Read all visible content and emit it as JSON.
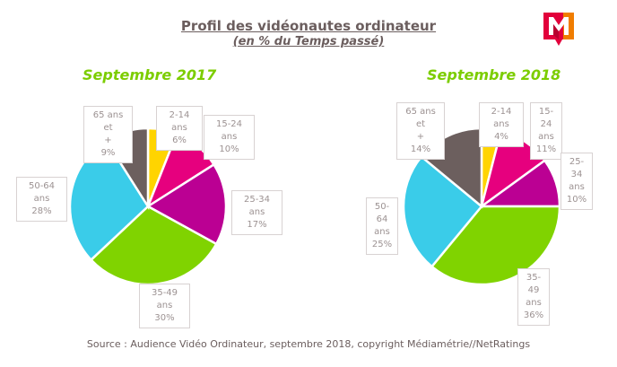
{
  "header": {
    "title": "Profil des vidéonautes ordinateur",
    "subtitle": "(en % du Temps passé)"
  },
  "logo": {
    "name": "mediametrie-logo",
    "colors": [
      "#e2003b",
      "#f07d00"
    ]
  },
  "footer": {
    "source": "Source : Audience Vidéo Ordinateur, septembre 2018, copyright Médiamétrie//NetRatings"
  },
  "colors": {
    "2-14 ans": "#ffd400",
    "15-24 ans": "#e6007e",
    "25-34 ans": "#bb0093",
    "35-49 ans": "#80d300",
    "50-64 ans": "#3acce9",
    "65 ans et +": "#6c5f5e"
  },
  "charts": [
    {
      "title": "Septembre 2017",
      "labels": [
        {
          "line1": "2-14 ans",
          "line2": "",
          "value": "6%"
        },
        {
          "line1": "15-24 ans",
          "line2": "",
          "value": "10%"
        },
        {
          "line1": "25-34 ans",
          "line2": "",
          "value": "17%"
        },
        {
          "line1": "35-49 ans",
          "line2": "",
          "value": "30%"
        },
        {
          "line1": "50-64 ans",
          "line2": "",
          "value": "28%"
        },
        {
          "line1": "65 ans et",
          "line2": "+",
          "value": "9%"
        }
      ]
    },
    {
      "title": "Septembre 2018",
      "labels": [
        {
          "line1": "2-14 ans",
          "line2": "",
          "value": "4%"
        },
        {
          "line1": "15-24",
          "line2": "ans",
          "value": "11%"
        },
        {
          "line1": "25-34",
          "line2": "ans",
          "value": "10%"
        },
        {
          "line1": "35-49",
          "line2": "ans",
          "value": "36%"
        },
        {
          "line1": "50-64",
          "line2": "ans",
          "value": "25%"
        },
        {
          "line1": "65 ans et",
          "line2": "+",
          "value": "14%"
        }
      ]
    }
  ],
  "chart_data": [
    {
      "type": "pie",
      "title": "Septembre 2017",
      "categories": [
        "2-14 ans",
        "15-24 ans",
        "25-34 ans",
        "35-49 ans",
        "50-64 ans",
        "65 ans et +"
      ],
      "values": [
        6,
        10,
        17,
        30,
        28,
        9
      ],
      "unit": "% du Temps passé"
    },
    {
      "type": "pie",
      "title": "Septembre 2018",
      "categories": [
        "2-14 ans",
        "15-24 ans",
        "25-34 ans",
        "35-49 ans",
        "50-64 ans",
        "65 ans et +"
      ],
      "values": [
        4,
        11,
        10,
        36,
        25,
        14
      ],
      "unit": "% du Temps passé"
    }
  ]
}
